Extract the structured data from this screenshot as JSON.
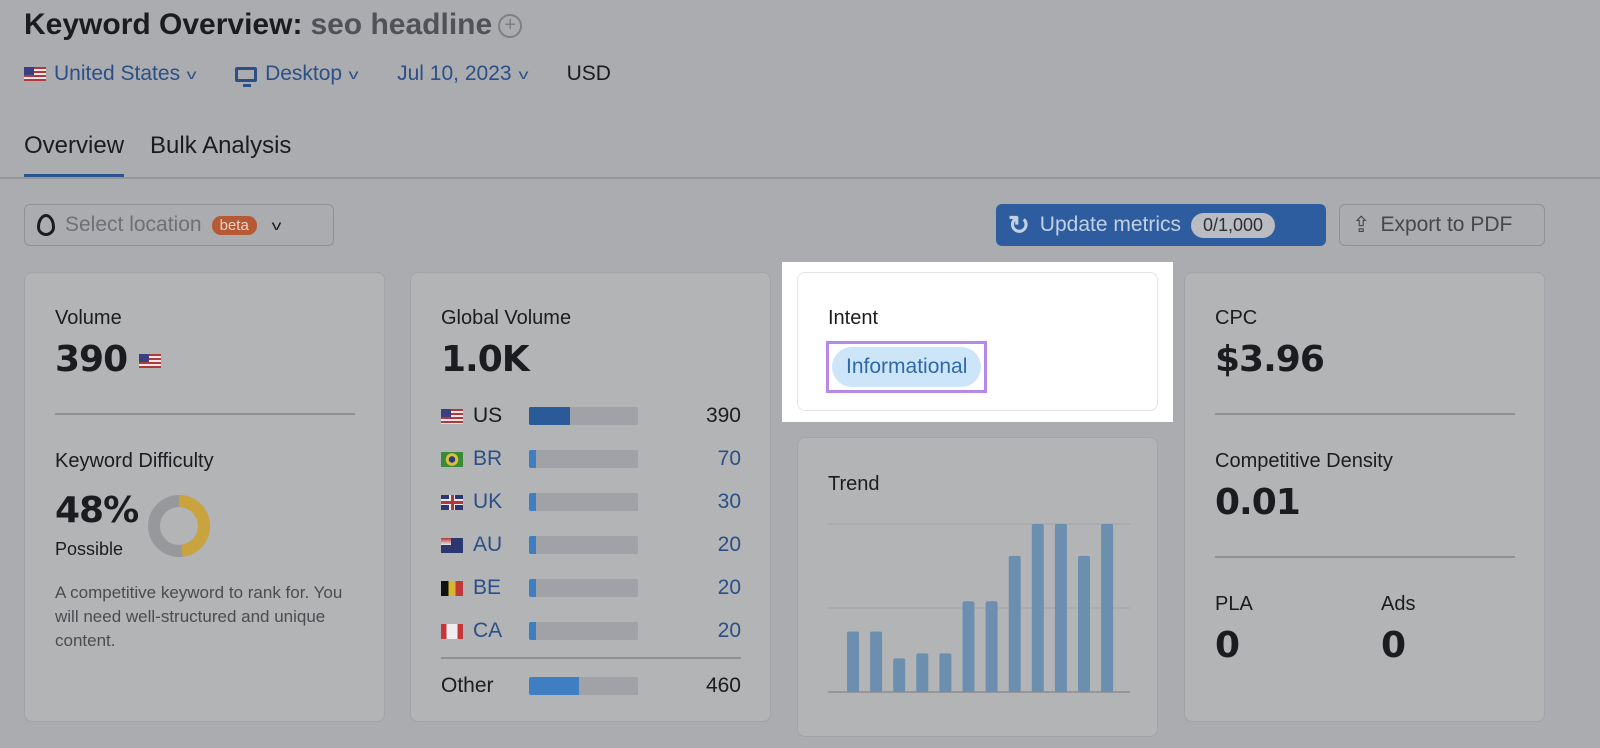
{
  "header": {
    "title": "Keyword Overview:",
    "keyword": "seo headline",
    "add_icon": "plus-circle-icon"
  },
  "filters": {
    "country": "United States",
    "device": "Desktop",
    "date": "Jul 10, 2023",
    "currency": "USD"
  },
  "tabs": [
    {
      "label": "Overview",
      "active": true
    },
    {
      "label": "Bulk Analysis",
      "active": false
    }
  ],
  "toolbar": {
    "location_placeholder": "Select location",
    "beta": "beta",
    "update_label": "Update metrics",
    "update_count": "0/1,000",
    "export_label": "Export to PDF"
  },
  "volume": {
    "label": "Volume",
    "value": "390"
  },
  "difficulty": {
    "label": "Keyword Difficulty",
    "value": "48%",
    "percent": 48,
    "level": "Possible",
    "description": "A competitive keyword to rank for. You will need well-structured and unique content.",
    "color": "#c9a33e"
  },
  "global_volume": {
    "label": "Global Volume",
    "value": "1.0K",
    "rows": [
      {
        "code": "US",
        "value": "390",
        "fill": 0.38
      },
      {
        "code": "BR",
        "value": "70",
        "fill": 0.06
      },
      {
        "code": "UK",
        "value": "30",
        "fill": 0.03
      },
      {
        "code": "AU",
        "value": "20",
        "fill": 0.03
      },
      {
        "code": "BE",
        "value": "20",
        "fill": 0.03
      },
      {
        "code": "CA",
        "value": "20",
        "fill": 0.03
      }
    ],
    "other": {
      "label": "Other",
      "value": "460",
      "fill": 0.46
    }
  },
  "intent": {
    "label": "Intent",
    "value": "Informational"
  },
  "trend": {
    "label": "Trend"
  },
  "chart_data": {
    "type": "bar",
    "values": [
      0.36,
      0.36,
      0.2,
      0.23,
      0.23,
      0.54,
      0.54,
      0.81,
      1,
      1,
      0.81,
      1
    ],
    "ylim": [
      0,
      1
    ],
    "grid": true,
    "color": "#6c8fb0"
  },
  "cpc": {
    "label": "CPC",
    "value": "$3.96"
  },
  "density": {
    "label": "Competitive Density",
    "value": "0.01"
  },
  "pla": {
    "label": "PLA",
    "value": "0"
  },
  "ads": {
    "label": "Ads",
    "value": "0"
  }
}
